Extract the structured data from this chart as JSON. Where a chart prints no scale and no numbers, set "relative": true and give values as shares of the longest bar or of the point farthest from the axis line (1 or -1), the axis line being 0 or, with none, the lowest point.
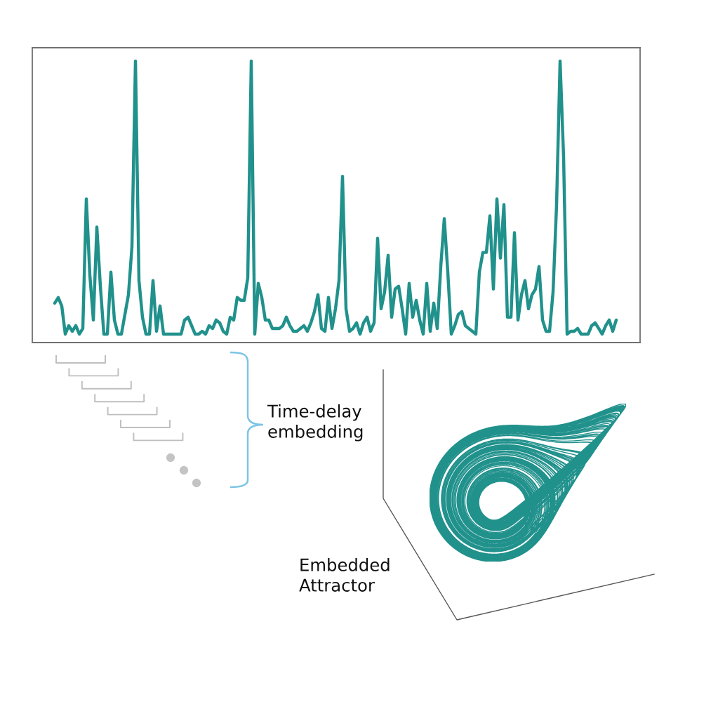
{
  "chart_data": {
    "type": "line",
    "relative": true,
    "categories": [
      null,
      null,
      null,
      null,
      null,
      null,
      null,
      null,
      null,
      null,
      null,
      null,
      null,
      null,
      null,
      null,
      null,
      null,
      null,
      null,
      null,
      null,
      null,
      null,
      null,
      null,
      null,
      null,
      null,
      null,
      null,
      null,
      null,
      null,
      null,
      null,
      null,
      null,
      null,
      null,
      null,
      null,
      null,
      null,
      null,
      null,
      null,
      null,
      null,
      null,
      null,
      null,
      null,
      null,
      null,
      null,
      null,
      null,
      null,
      null,
      null,
      null,
      null,
      null,
      null,
      null,
      null,
      null,
      null,
      null,
      null,
      null,
      null,
      null,
      null,
      null,
      null,
      null,
      null,
      null,
      null,
      null,
      null,
      null,
      null,
      null,
      null,
      null,
      null,
      null,
      null,
      null,
      null,
      null,
      null,
      null,
      null,
      null,
      null,
      null,
      null,
      null,
      null,
      null,
      null,
      null,
      null,
      null,
      null,
      null,
      null,
      null,
      null,
      null,
      null,
      null,
      null,
      null,
      null,
      null,
      null,
      null,
      null,
      null,
      null,
      null,
      null,
      null,
      null,
      null,
      null,
      null,
      null,
      null,
      null,
      null,
      null,
      null,
      null,
      null,
      null,
      null,
      null,
      null,
      null,
      null,
      null,
      null,
      null,
      null,
      null,
      null,
      null,
      null,
      null,
      null,
      null,
      null,
      null,
      null,
      null
    ],
    "series": [
      {
        "color": "#21918c",
        "values": [
          0.14,
          0.16,
          0.13,
          0.03,
          0.06,
          0.04,
          0.06,
          0.03,
          0.05,
          0.51,
          0.24,
          0.08,
          0.41,
          0.2,
          0.03,
          0.03,
          0.25,
          0.08,
          0.03,
          0.03,
          0.1,
          0.17,
          0.34,
          1.0,
          0.22,
          0.09,
          0.03,
          0.03,
          0.22,
          0.04,
          0.13,
          0.03,
          0.03,
          0.03,
          0.03,
          0.03,
          0.03,
          0.08,
          0.09,
          0.06,
          0.03,
          0.03,
          0.04,
          0.03,
          0.06,
          0.05,
          0.08,
          0.07,
          0.04,
          0.03,
          0.09,
          0.08,
          0.16,
          0.15,
          0.15,
          0.23,
          1.0,
          0.03,
          0.21,
          0.16,
          0.08,
          0.08,
          0.05,
          0.05,
          0.05,
          0.06,
          0.09,
          0.06,
          0.04,
          0.04,
          0.05,
          0.06,
          0.04,
          0.07,
          0.11,
          0.17,
          0.05,
          0.04,
          0.16,
          0.05,
          0.12,
          0.22,
          0.59,
          0.12,
          0.04,
          0.05,
          0.07,
          0.03,
          0.07,
          0.09,
          0.04,
          0.07,
          0.37,
          0.12,
          0.18,
          0.31,
          0.09,
          0.19,
          0.2,
          0.12,
          0.03,
          0.21,
          0.09,
          0.15,
          0.08,
          0.03,
          0.21,
          0.04,
          0.14,
          0.05,
          0.27,
          0.44,
          0.25,
          0.03,
          0.06,
          0.1,
          0.11,
          0.06,
          0.05,
          0.04,
          0.03,
          0.25,
          0.32,
          0.32,
          0.45,
          0.19,
          0.51,
          0.3,
          0.49,
          0.09,
          0.09,
          0.39,
          0.08,
          0.17,
          0.22,
          0.12,
          0.17,
          0.19,
          0.27,
          0.08,
          0.04,
          0.04,
          0.18,
          0.49,
          1.0,
          0.66,
          0.03,
          0.04,
          0.04,
          0.05,
          0.03,
          0.03,
          0.03,
          0.06,
          0.07,
          0.05,
          0.03,
          0.06,
          0.08,
          0.04,
          0.08
        ]
      }
    ],
    "annotations": [
      "Time-delay\nembedding",
      "Embedded\nAttractor"
    ]
  }
}
